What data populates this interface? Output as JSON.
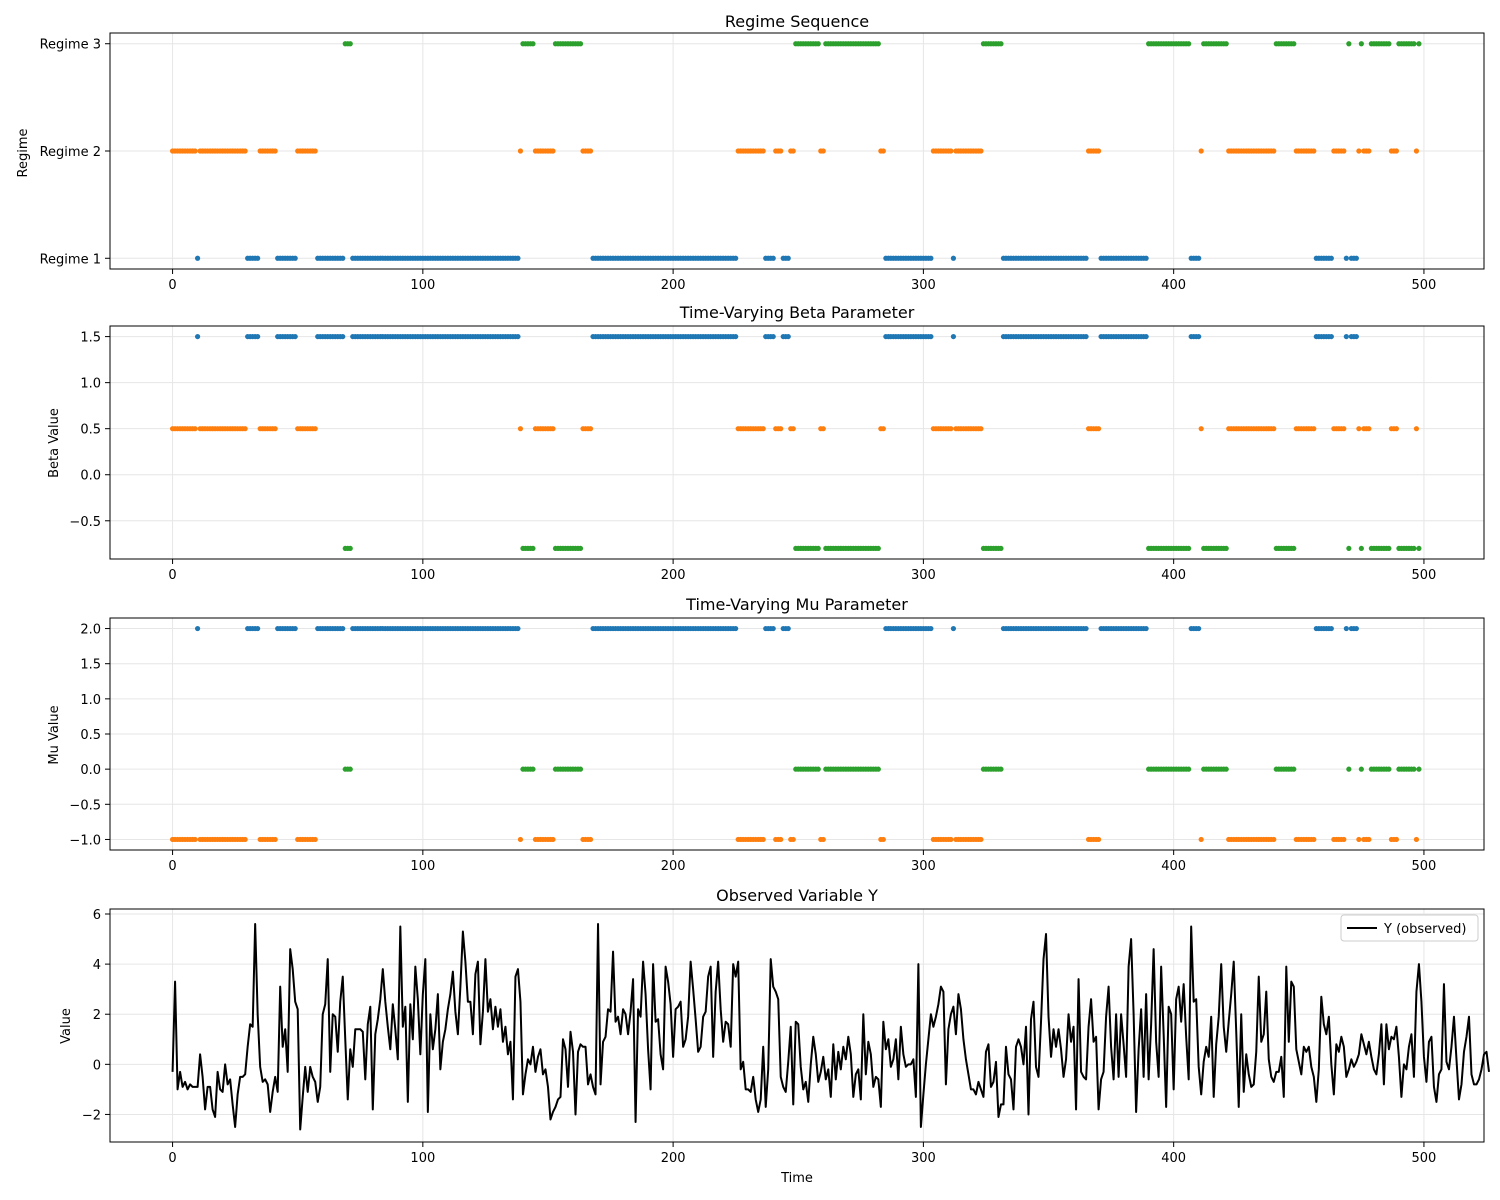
{
  "chart_data": [
    {
      "id": "regime",
      "type": "scatter",
      "title": "Regime Sequence",
      "xlabel": "",
      "ylabel": "Regime",
      "xlim": [
        -25,
        524
      ],
      "ylim": [
        0.9,
        3.1
      ],
      "xticks": [
        0,
        100,
        200,
        300,
        400,
        500
      ],
      "yticks": [
        1,
        2,
        3
      ],
      "ytick_labels": [
        "Regime 1",
        "Regime 2",
        "Regime 3"
      ],
      "grid": true,
      "map": {
        "1": 1,
        "2": 2,
        "3": 3
      }
    },
    {
      "id": "beta",
      "type": "scatter",
      "title": "Time-Varying Beta Parameter",
      "xlabel": "",
      "ylabel": "Beta Value",
      "xlim": [
        -25,
        524
      ],
      "ylim": [
        -0.915,
        1.615
      ],
      "xticks": [
        0,
        100,
        200,
        300,
        400,
        500
      ],
      "yticks": [
        -0.5,
        0.0,
        0.5,
        1.0,
        1.5
      ],
      "ytick_labels": [
        "−0.5",
        "0.0",
        "0.5",
        "1.0",
        "1.5"
      ],
      "grid": true,
      "map": {
        "1": 1.5,
        "2": 0.5,
        "3": -0.8
      }
    },
    {
      "id": "mu",
      "type": "scatter",
      "title": "Time-Varying Mu Parameter",
      "xlabel": "",
      "ylabel": "Mu Value",
      "xlim": [
        -25,
        524
      ],
      "ylim": [
        -1.15,
        2.15
      ],
      "xticks": [
        0,
        100,
        200,
        300,
        400,
        500
      ],
      "yticks": [
        -1.0,
        -0.5,
        0.0,
        0.5,
        1.0,
        1.5,
        2.0
      ],
      "ytick_labels": [
        "−1.0",
        "−0.5",
        "0.0",
        "0.5",
        "1.0",
        "1.5",
        "2.0"
      ],
      "grid": true,
      "map": {
        "1": 2.0,
        "2": -1.0,
        "3": 0.0
      }
    },
    {
      "id": "observed",
      "type": "line",
      "title": "Observed Variable Y",
      "xlabel": "Time",
      "ylabel": "Value",
      "xlim": [
        -25,
        524
      ],
      "ylim": [
        -3.1,
        6.2
      ],
      "xticks": [
        0,
        100,
        200,
        300,
        400,
        500
      ],
      "yticks": [
        -2,
        0,
        2,
        4,
        6
      ],
      "ytick_labels": [
        "−2",
        "0",
        "2",
        "4",
        "6"
      ],
      "grid": true,
      "legend": "top-right",
      "series": [
        {
          "name": "Y (observed)",
          "color": "#000000"
        }
      ],
      "x_range": [
        0,
        499
      ],
      "y_summary": {
        "min": -2.6,
        "max": 5.8
      }
    }
  ],
  "colors": {
    "regime_1": "#1f77b4",
    "regime_2": "#ff7f0e",
    "regime_3": "#2ca02c",
    "grid": "#e6e6e6"
  },
  "regime_runs": [
    [
      0,
      1,
      2
    ],
    [
      3,
      10,
      2
    ],
    [
      11,
      11,
      1
    ],
    [
      12,
      30,
      2
    ],
    [
      31,
      35,
      1
    ],
    [
      36,
      42,
      2
    ],
    [
      43,
      50,
      1
    ],
    [
      51,
      58,
      2
    ],
    [
      59,
      69,
      1
    ],
    [
      70,
      72,
      3
    ],
    [
      73,
      139,
      1
    ],
    [
      140,
      140,
      2
    ],
    [
      141,
      145,
      3
    ],
    [
      146,
      153,
      2
    ],
    [
      154,
      164,
      3
    ],
    [
      165,
      168,
      2
    ],
    [
      169,
      226,
      1
    ],
    [
      227,
      237,
      2
    ],
    [
      238,
      241,
      1
    ],
    [
      242,
      244,
      2
    ],
    [
      245,
      247,
      1
    ],
    [
      248,
      249,
      2
    ],
    [
      250,
      259,
      3
    ],
    [
      260,
      261,
      2
    ],
    [
      262,
      283,
      3
    ],
    [
      284,
      285,
      2
    ],
    [
      286,
      304,
      1
    ],
    [
      305,
      312,
      2
    ],
    [
      313,
      313,
      1
    ],
    [
      314,
      324,
      2
    ],
    [
      325,
      332,
      3
    ],
    [
      333,
      366,
      1
    ],
    [
      367,
      371,
      2
    ],
    [
      372,
      390,
      1
    ],
    [
      391,
      407,
      3
    ],
    [
      408,
      411,
      1
    ],
    [
      412,
      412,
      2
    ],
    [
      413,
      422,
      3
    ],
    [
      423,
      441,
      2
    ],
    [
      442,
      449,
      3
    ],
    [
      450,
      457,
      2
    ],
    [
      458,
      464,
      1
    ],
    [
      465,
      469,
      2
    ],
    [
      470,
      470,
      1
    ],
    [
      471,
      471,
      3
    ],
    [
      472,
      474,
      1
    ],
    [
      475,
      475,
      2
    ],
    [
      476,
      476,
      3
    ],
    [
      477,
      479,
      2
    ],
    [
      480,
      487,
      3
    ],
    [
      488,
      490,
      2
    ],
    [
      491,
      497,
      3
    ],
    [
      498,
      498,
      2
    ],
    [
      499,
      499,
      3
    ]
  ],
  "y_observed": [
    -0.3,
    3.3,
    -1.0,
    -0.3,
    -0.9,
    -0.7,
    -1.0,
    -0.8,
    -0.9,
    -0.9,
    -0.9,
    0.4,
    -0.5,
    -1.8,
    -0.9,
    -0.9,
    -1.8,
    -2.1,
    -0.3,
    -1.0,
    -1.1,
    0.0,
    -0.8,
    -0.6,
    -1.6,
    -2.5,
    -1.2,
    -0.5,
    -0.5,
    -0.4,
    0.7,
    1.6,
    1.5,
    5.6,
    2.0,
    -0.1,
    -0.7,
    -0.6,
    -0.8,
    -1.9,
    -1.1,
    -0.5,
    -1.1,
    3.1,
    0.7,
    1.4,
    -0.3,
    4.6,
    3.8,
    2.5,
    2.2,
    -2.6,
    -1.3,
    -0.1,
    -1.1,
    -0.1,
    -0.5,
    -0.7,
    -1.5,
    -0.9,
    2.0,
    2.4,
    4.2,
    -0.3,
    2.0,
    1.9,
    0.5,
    2.5,
    3.5,
    1.0,
    -1.4,
    0.6,
    -0.1,
    1.4,
    1.4,
    1.4,
    1.3,
    -0.6,
    1.6,
    2.3,
    -1.8,
    1.2,
    1.8,
    2.6,
    3.8,
    2.5,
    1.5,
    0.6,
    2.4,
    1.4,
    0.2,
    5.5,
    1.5,
    2.3,
    -1.5,
    2.4,
    1.0,
    3.9,
    2.6,
    0.4,
    2.8,
    4.2,
    -1.9,
    2.0,
    0.6,
    1.4,
    2.8,
    -0.2,
    0.9,
    1.4,
    2.2,
    2.8,
    3.7,
    2.1,
    1.2,
    3.1,
    5.3,
    4.1,
    2.5,
    2.5,
    1.2,
    3.6,
    4.1,
    0.8,
    2.1,
    4.2,
    2.1,
    2.6,
    1.4,
    2.3,
    1.5,
    2.2,
    0.9,
    1.5,
    0.4,
    0.9,
    -1.4,
    3.5,
    3.8,
    2.5,
    -1.2,
    -0.4,
    0.2,
    0.0,
    0.7,
    -0.3,
    0.3,
    0.6,
    -0.4,
    -0.2,
    -0.9,
    -2.2,
    -1.9,
    -1.7,
    -1.4,
    -1.3,
    1.0,
    0.6,
    -0.9,
    1.3,
    0.5,
    -2.0,
    0.5,
    0.8,
    0.7,
    0.7,
    -0.8,
    -0.4,
    -0.9,
    -1.2,
    5.6,
    -0.8,
    0.9,
    1.1,
    2.2,
    2.1,
    4.5,
    1.7,
    1.9,
    1.2,
    2.2,
    2.0,
    1.2,
    2.1,
    3.4,
    -2.3,
    2.2,
    1.9,
    4.1,
    2.8,
    0.6,
    -1.0,
    4.0,
    1.7,
    1.8,
    0.4,
    -0.2,
    3.9,
    3.3,
    2.4,
    0.3,
    2.2,
    2.3,
    2.5,
    0.7,
    1.0,
    1.9,
    4.1,
    3.0,
    1.8,
    0.5,
    0.7,
    1.9,
    2.1,
    3.5,
    3.9,
    0.3,
    2.9,
    4.1,
    2.2,
    0.9,
    1.7,
    1.6,
    0.7,
    4.0,
    3.5,
    4.1,
    -0.2,
    0.1,
    -1.0,
    -1.0,
    -1.1,
    -0.5,
    -1.4,
    -1.9,
    -1.4,
    0.7,
    -1.7,
    -0.2,
    4.2,
    3.1,
    2.9,
    2.6,
    -0.5,
    -0.9,
    -1.1,
    0.1,
    1.5,
    -1.6,
    1.7,
    1.6,
    -0.1,
    -1.0,
    -0.7,
    -1.5,
    0.0,
    1.1,
    0.4,
    -0.7,
    -0.3,
    0.3,
    -0.6,
    -0.2,
    -1.3,
    0.8,
    -0.6,
    0.5,
    -0.2,
    0.7,
    0.2,
    1.1,
    0.4,
    -1.3,
    -0.4,
    -0.2,
    -1.4,
    2.0,
    -0.4,
    0.9,
    0.4,
    -0.9,
    -0.5,
    -0.6,
    -1.7,
    1.7,
    0.6,
    1.0,
    -0.1,
    0.2,
    1.0,
    -0.6,
    1.5,
    0.4,
    -0.1,
    0.0,
    0.0,
    0.2,
    -1.3,
    4.0,
    -2.5,
    -1.2,
    0.0,
    1.0,
    2.0,
    1.5,
    1.9,
    2.4,
    3.1,
    2.9,
    -0.8,
    1.4,
    2.0,
    2.3,
    1.2,
    2.8,
    2.2,
    1.0,
    0.2,
    -0.4,
    -1.0,
    -1.0,
    -1.2,
    -0.7,
    -1.0,
    -1.3,
    0.5,
    0.8,
    -0.9,
    -0.7,
    0.1,
    -2.1,
    -1.6,
    -1.6,
    0.7,
    -0.4,
    -0.6,
    -1.8,
    0.7,
    1.0,
    0.7,
    0.0,
    1.5,
    -2.0,
    1.8,
    2.5,
    -0.1,
    -0.5,
    1.7,
    4.2,
    5.2,
    1.9,
    0.3,
    1.4,
    0.7,
    1.4,
    0.6,
    -0.5,
    0.2,
    2.0,
    0.9,
    1.5,
    -1.8,
    3.4,
    -0.3,
    -0.5,
    -0.6,
    1.5,
    2.6,
    0.9,
    1.1,
    -1.8,
    -0.6,
    -0.3,
    1.9,
    3.1,
    0.7,
    -0.6,
    2.0,
    -0.5,
    2.0,
    0.8,
    -0.5,
    3.9,
    5.0,
    2.0,
    -1.9,
    0.6,
    2.2,
    -0.5,
    2.8,
    -0.6,
    1.6,
    4.6,
    0.9,
    -0.5,
    3.9,
    1.2,
    -1.7,
    2.3,
    2.0,
    -1.0,
    2.6,
    3.1,
    1.7,
    3.2,
    1.1,
    -0.6,
    5.5,
    2.5,
    2.6,
    -0.1,
    -1.2,
    0.1,
    0.7,
    0.3,
    1.9,
    -1.3,
    0.8,
    1.9,
    4.0,
    1.5,
    0.5,
    1.7,
    2.8,
    4.1,
    1.3,
    -1.7,
    2.0,
    -1.1,
    0.4,
    -0.4,
    -0.9,
    -0.8,
    0.5,
    3.5,
    0.9,
    1.2,
    2.9,
    0.2,
    -0.5,
    -0.7,
    -0.3,
    -0.3,
    0.3,
    -1.3,
    3.9,
    0.9,
    3.3,
    3.1,
    0.6,
    0.1,
    -0.4,
    0.7,
    0.5,
    0.7,
    -0.1,
    -0.5,
    -1.5,
    -0.2,
    2.7,
    1.6,
    1.2,
    1.9,
    0.0,
    -1.2,
    0.8,
    0.5,
    1.1,
    0.7,
    -0.5,
    -0.2,
    0.2,
    -0.1,
    0.1,
    0.4,
    1.2,
    0.8,
    0.4,
    0.9,
    0.3,
    -0.2,
    -0.4,
    0.4,
    1.6,
    -0.8,
    1.6,
    0.6,
    1.1,
    1.0,
    1.5,
    0.3,
    -1.3,
    0.0,
    -0.2,
    0.7,
    1.2,
    -0.5,
    2.9,
    4.0,
    2.5,
    0.3,
    -0.7,
    0.9,
    1.1,
    -0.9,
    -1.5,
    -0.4,
    -0.2,
    3.2,
    0.1,
    -0.2,
    0.7,
    1.9,
    0.2,
    -1.4,
    -0.8,
    0.5,
    1.1,
    1.9,
    -0.4,
    -0.8,
    -0.8,
    -0.6,
    -0.2,
    0.4,
    0.5,
    -0.3
  ]
}
